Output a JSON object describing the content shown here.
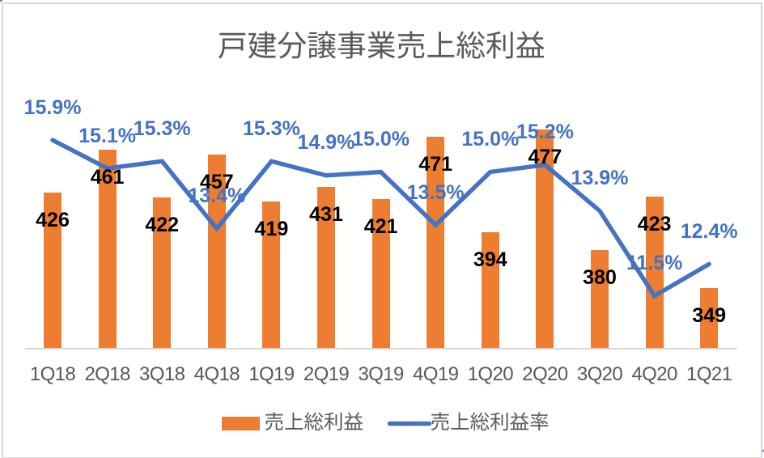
{
  "window": {
    "background": "#FFFFFF",
    "sheet_edge_color": "#D6D6D6",
    "gridline_fragment_color": "#808080",
    "scroll_arrow_color": "#3D9BF2"
  },
  "chart": {
    "background": "#FFFFFF",
    "border_color": "#D9D9D9",
    "title_color": "#595959",
    "axis_line_color": "#D9D9D9",
    "category_label_color": "#595959",
    "bar_label_color": "#000000",
    "rate_label_color": "#4472C4"
  },
  "chart_data": {
    "type": "bar",
    "subtype": "bar-line combo",
    "title": "戸建分譲事業売上総利益",
    "categories": [
      "1Q18",
      "2Q18",
      "3Q18",
      "4Q18",
      "1Q19",
      "2Q19",
      "3Q19",
      "4Q19",
      "1Q20",
      "2Q20",
      "3Q20",
      "4Q20",
      "1Q21"
    ],
    "series": [
      {
        "name": "売上総利益",
        "type": "bar",
        "color": "#ED7D31",
        "values": [
          426,
          461,
          422,
          457,
          419,
          431,
          421,
          471,
          394,
          477,
          380,
          423,
          349
        ],
        "axis": {
          "side": "left",
          "min": 300,
          "max": 500,
          "visible": false
        }
      },
      {
        "name": "売上総利益率",
        "type": "line",
        "color": "#4472C4",
        "unit": "%",
        "values": [
          15.9,
          15.1,
          15.3,
          13.4,
          15.3,
          14.9,
          15.0,
          13.5,
          15.0,
          15.2,
          13.9,
          11.5,
          12.4
        ],
        "axis": {
          "side": "right",
          "min": 10,
          "max": 17,
          "visible": false
        }
      }
    ],
    "data_labels": true,
    "gridlines": false,
    "legend_position": "bottom"
  },
  "legend": {
    "items": [
      {
        "label": "売上総利益",
        "swatch": "bar",
        "color": "#ED7D31"
      },
      {
        "label": "売上総利益率",
        "swatch": "line",
        "color": "#4472C4"
      }
    ]
  }
}
